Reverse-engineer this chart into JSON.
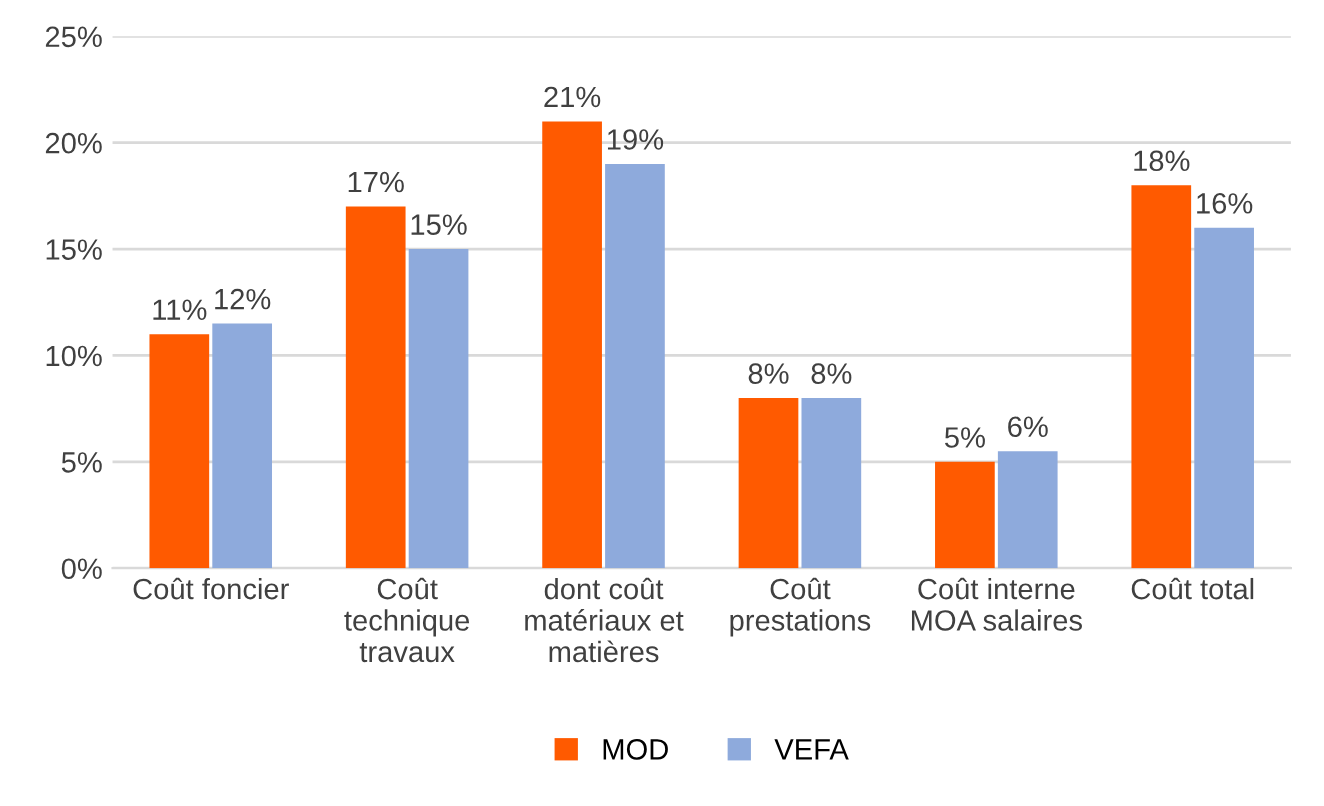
{
  "chart_data": {
    "type": "bar",
    "categories": [
      "Coût foncier",
      "Coût\ntechnique\ntravaux",
      "dont coût\nmatériaux et\nmatières",
      "Coût\nprestations",
      "Coût interne\nMOA salaires",
      "Coût total"
    ],
    "series": [
      {
        "name": "MOD",
        "color": "#ff5a00",
        "values": [
          11,
          17,
          21,
          8,
          5,
          18
        ],
        "value_labels": [
          "11%",
          "17%",
          "21%",
          "8%",
          "5%",
          "18%"
        ]
      },
      {
        "name": "VEFA",
        "color": "#8eaadc",
        "values": [
          11.5,
          15,
          19,
          8,
          5.5,
          16
        ],
        "value_labels": [
          "12%",
          "15%",
          "19%",
          "8%",
          "6%",
          "16%"
        ]
      }
    ],
    "ylim": [
      0,
      25
    ],
    "yticks": [
      {
        "value": 0,
        "label": "0%"
      },
      {
        "value": 5,
        "label": "5%"
      },
      {
        "value": 10,
        "label": "10%"
      },
      {
        "value": 15,
        "label": "15%"
      },
      {
        "value": 20,
        "label": "20%"
      },
      {
        "value": 25,
        "label": "25%"
      }
    ],
    "grid": "y",
    "legend": "bottom"
  }
}
